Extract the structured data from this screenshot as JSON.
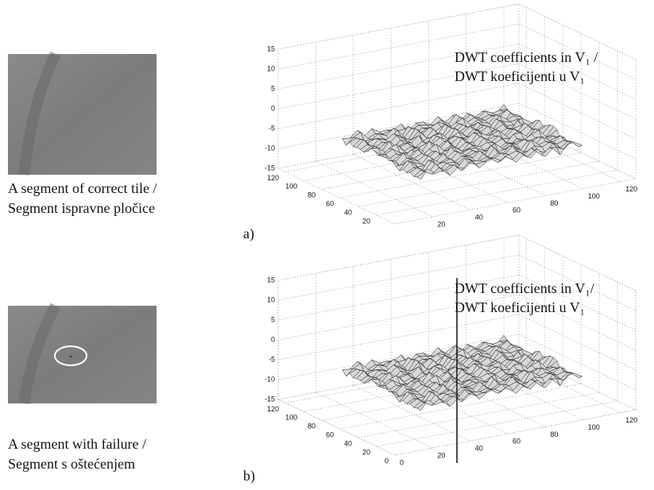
{
  "figure": {
    "panels": [
      {
        "caption": [
          "A segment of correct tile /",
          "Segment ispravne pločice"
        ],
        "label": "a)",
        "plot": {
          "annotation": [
            "DWT coefficients in V₁ /",
            "DWT koeficijenti u V₁"
          ],
          "zticks": [
            15,
            10,
            5,
            0,
            -5,
            -10,
            -15
          ],
          "yticks": [
            120,
            100,
            80,
            60,
            40,
            20
          ],
          "xticks": [
            20,
            40,
            60,
            80,
            100,
            120
          ]
        }
      },
      {
        "caption": [
          "A segment with failure /",
          "Segment s oštećenjem"
        ],
        "label": "b)",
        "plot": {
          "annotation": [
            "DWT coefficients in V₁/",
            "DWT koeficijenti u V₁"
          ],
          "zticks": [
            15,
            10,
            5,
            0,
            -5,
            -10,
            -15
          ],
          "yticks": [
            120,
            100,
            80,
            60,
            40,
            20,
            0
          ],
          "xticks": [
            0,
            20,
            40,
            60,
            80,
            100,
            120
          ]
        }
      }
    ]
  }
}
